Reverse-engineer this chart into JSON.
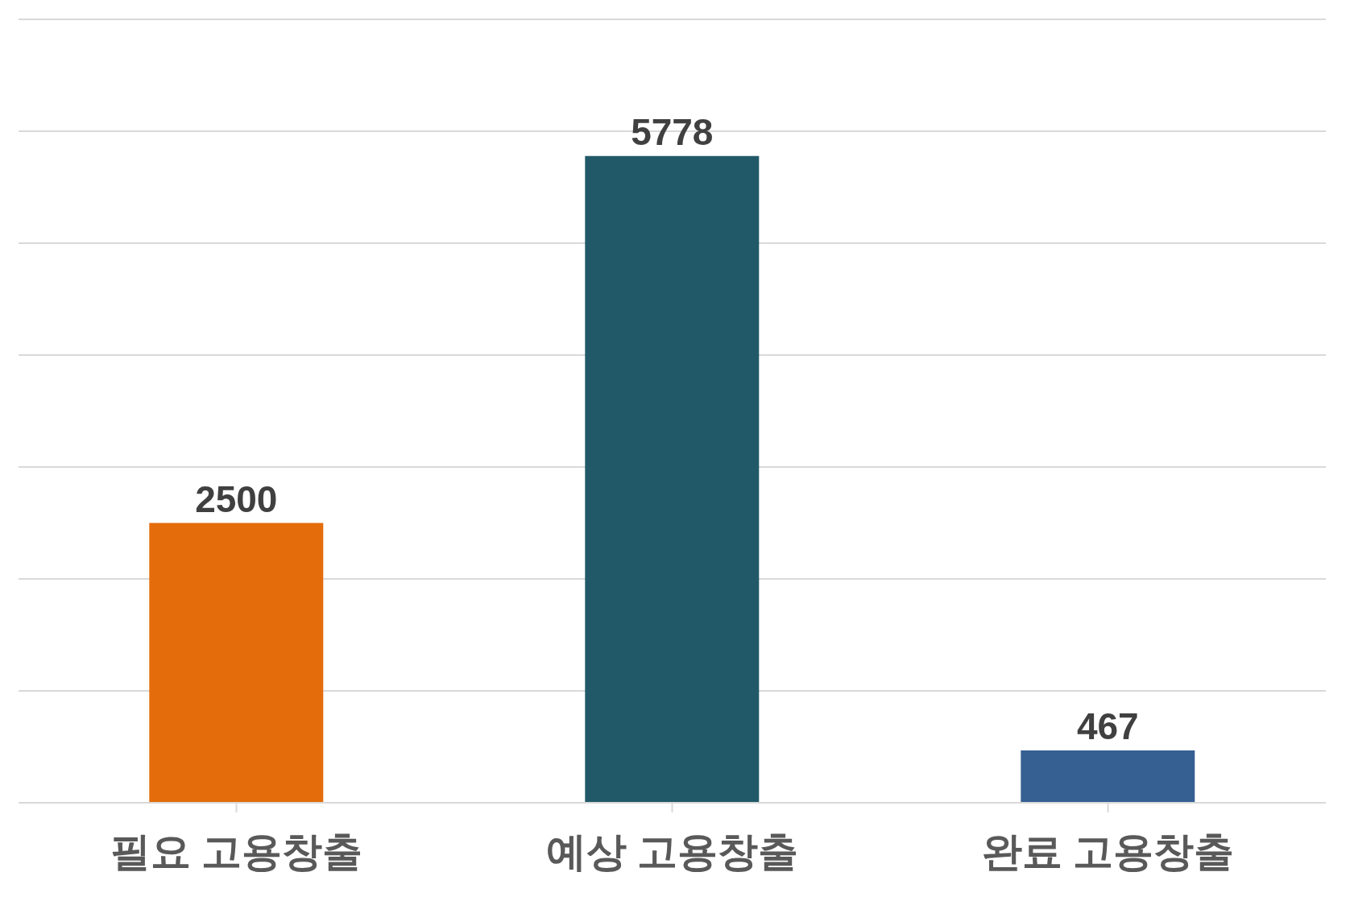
{
  "chart_data": {
    "type": "bar",
    "categories": [
      "필요 고용창출",
      "예상 고용창출",
      "완료 고용창출"
    ],
    "values": [
      2500,
      5778,
      467
    ],
    "colors": [
      "#e46c0a",
      "#215968",
      "#366092"
    ],
    "ylim": [
      0,
      7000
    ],
    "yticks": [
      0,
      1000,
      2000,
      3000,
      4000,
      5000,
      6000,
      7000
    ],
    "grid": "y",
    "tick_labels": "x",
    "data_labels": true,
    "legend": false
  }
}
